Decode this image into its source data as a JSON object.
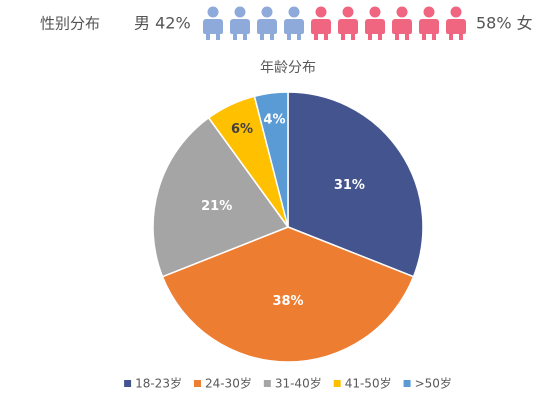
{
  "gender": {
    "title": "性别分布",
    "male": "男 42%",
    "female": "58% 女"
  },
  "chart_data": {
    "type": "pie",
    "title": "年龄分布",
    "categories": [
      "18-23岁",
      "24-30岁",
      "31-40岁",
      "41-50岁",
      ">50岁"
    ],
    "values": [
      31,
      38,
      21,
      6,
      4
    ],
    "value_labels": [
      "31%",
      "38%",
      "21%",
      "6%",
      "4%"
    ],
    "colors": [
      "#44548e",
      "#ed7d31",
      "#a5a5a5",
      "#ffc000",
      "#5b9bd5"
    ],
    "legend": "bottom"
  }
}
